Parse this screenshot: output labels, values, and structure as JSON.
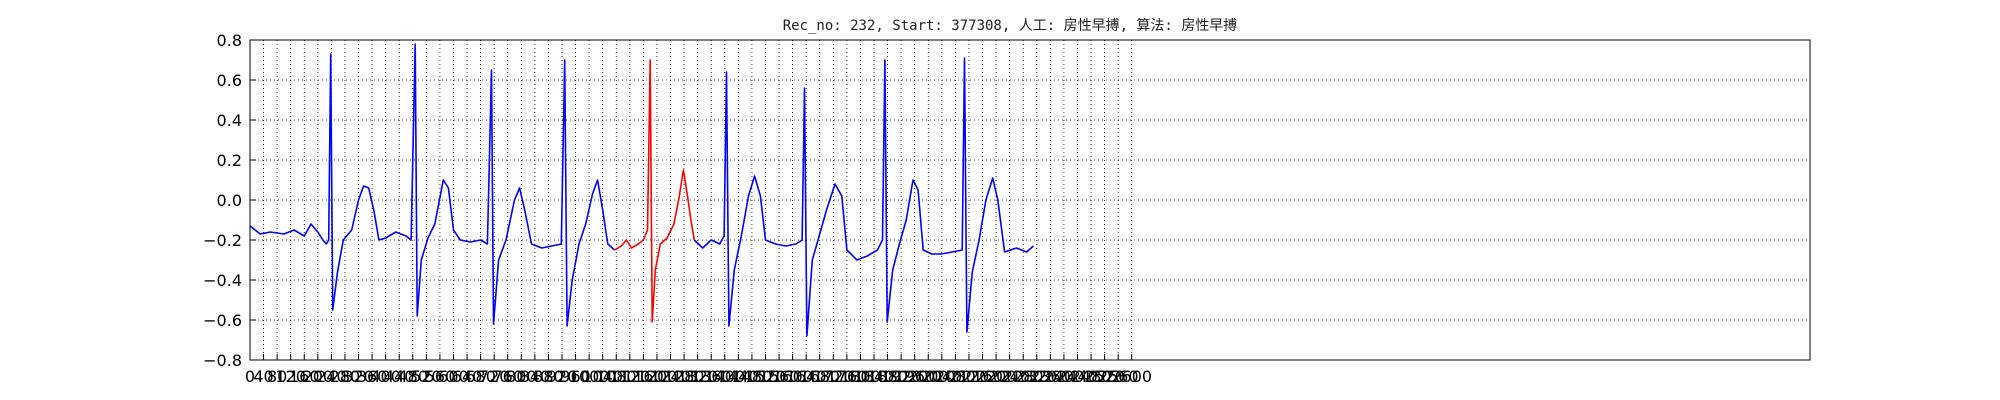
{
  "chart_data": {
    "type": "line",
    "title": "Rec_no: 232, Start: 377308, 人工: 房性早搏, 算法: 房性早搏",
    "xlabel": "",
    "ylabel": "",
    "xlim": [
      0,
      4600
    ],
    "ylim": [
      -0.8,
      0.8
    ],
    "grid": true,
    "y_ticks": [
      "0.8",
      "0.6",
      "0.4",
      "0.2",
      "0.0",
      "-0.2",
      "-0.4",
      "-0.6",
      "-0.8"
    ],
    "x_ticks": [
      "0",
      "40",
      "80",
      "120",
      "160",
      "200",
      "240",
      "280",
      "320",
      "360",
      "400",
      "440",
      "480",
      "520",
      "560",
      "600",
      "640",
      "680",
      "720",
      "760",
      "800",
      "840",
      "880",
      "920",
      "960",
      "1000",
      "1040",
      "1080",
      "1120",
      "1160",
      "1200",
      "1240",
      "1280",
      "1320",
      "1360",
      "1400",
      "1440",
      "1480",
      "1520",
      "1560",
      "1600",
      "1640",
      "1680",
      "1720",
      "1760",
      "1800",
      "1840",
      "1880",
      "1920",
      "1960",
      "2000",
      "2040",
      "2080",
      "2120",
      "2160",
      "2200",
      "2240",
      "2280",
      "2320",
      "2360",
      "2400",
      "2440",
      "2480",
      "2520",
      "2560",
      "2600"
    ],
    "series": [
      {
        "color": "#0000ff",
        "points": [
          [
            0,
            -0.13
          ],
          [
            30,
            -0.17
          ],
          [
            60,
            -0.16
          ],
          [
            100,
            -0.17
          ],
          [
            130,
            -0.15
          ],
          [
            160,
            -0.18
          ],
          [
            180,
            -0.12
          ],
          [
            200,
            -0.16
          ],
          [
            215,
            -0.2
          ],
          [
            225,
            -0.22
          ],
          [
            232,
            -0.2
          ],
          [
            238,
            0.73
          ],
          [
            244,
            -0.55
          ],
          [
            258,
            -0.36
          ],
          [
            275,
            -0.2
          ],
          [
            300,
            -0.15
          ],
          [
            320,
            0.0
          ],
          [
            335,
            0.07
          ],
          [
            350,
            0.06
          ],
          [
            365,
            -0.05
          ],
          [
            380,
            -0.2
          ],
          [
            400,
            -0.19
          ],
          [
            430,
            -0.16
          ],
          [
            460,
            -0.18
          ],
          [
            475,
            -0.2
          ],
          [
            487,
            0.78
          ],
          [
            493,
            -0.58
          ],
          [
            505,
            -0.3
          ],
          [
            525,
            -0.19
          ],
          [
            545,
            -0.12
          ],
          [
            570,
            0.1
          ],
          [
            585,
            0.06
          ],
          [
            600,
            -0.15
          ],
          [
            620,
            -0.2
          ],
          [
            650,
            -0.21
          ],
          [
            680,
            -0.2
          ],
          [
            700,
            -0.22
          ],
          [
            712,
            0.65
          ],
          [
            718,
            -0.62
          ],
          [
            733,
            -0.3
          ],
          [
            755,
            -0.2
          ],
          [
            780,
            0.0
          ],
          [
            795,
            0.06
          ],
          [
            810,
            -0.05
          ],
          [
            830,
            -0.22
          ],
          [
            860,
            -0.24
          ],
          [
            890,
            -0.23
          ],
          [
            918,
            -0.22
          ],
          [
            928,
            0.7
          ],
          [
            935,
            -0.63
          ],
          [
            950,
            -0.4
          ],
          [
            970,
            -0.22
          ],
          [
            990,
            -0.12
          ],
          [
            1010,
            0.03
          ],
          [
            1025,
            0.1
          ],
          [
            1040,
            -0.05
          ],
          [
            1055,
            -0.22
          ],
          [
            1075,
            -0.25
          ]
        ]
      },
      {
        "color": "#ff0000",
        "points": [
          [
            1075,
            -0.25
          ],
          [
            1095,
            -0.23
          ],
          [
            1110,
            -0.2
          ],
          [
            1125,
            -0.24
          ],
          [
            1145,
            -0.22
          ],
          [
            1160,
            -0.2
          ],
          [
            1172,
            -0.15
          ],
          [
            1180,
            0.7
          ],
          [
            1186,
            -0.61
          ],
          [
            1195,
            -0.35
          ],
          [
            1210,
            -0.22
          ],
          [
            1230,
            -0.19
          ],
          [
            1250,
            -0.12
          ],
          [
            1265,
            0.01
          ],
          [
            1278,
            0.15
          ],
          [
            1290,
            0.02
          ],
          [
            1300,
            -0.1
          ],
          [
            1310,
            -0.2
          ]
        ]
      },
      {
        "color": "#0000ff",
        "points": [
          [
            1310,
            -0.2
          ],
          [
            1335,
            -0.24
          ],
          [
            1360,
            -0.2
          ],
          [
            1385,
            -0.22
          ],
          [
            1398,
            -0.18
          ],
          [
            1405,
            0.64
          ],
          [
            1412,
            -0.63
          ],
          [
            1428,
            -0.35
          ],
          [
            1450,
            -0.17
          ],
          [
            1470,
            0.02
          ],
          [
            1488,
            0.12
          ],
          [
            1505,
            0.02
          ],
          [
            1520,
            -0.2
          ],
          [
            1550,
            -0.22
          ],
          [
            1580,
            -0.23
          ],
          [
            1610,
            -0.22
          ],
          [
            1628,
            -0.2
          ],
          [
            1635,
            0.56
          ],
          [
            1642,
            -0.68
          ],
          [
            1658,
            -0.3
          ],
          [
            1680,
            -0.17
          ],
          [
            1700,
            -0.05
          ],
          [
            1725,
            0.08
          ],
          [
            1745,
            0.02
          ],
          [
            1760,
            -0.25
          ],
          [
            1790,
            -0.3
          ],
          [
            1820,
            -0.28
          ],
          [
            1850,
            -0.25
          ],
          [
            1865,
            -0.2
          ],
          [
            1872,
            0.7
          ],
          [
            1879,
            -0.61
          ],
          [
            1895,
            -0.35
          ],
          [
            1915,
            -0.22
          ],
          [
            1935,
            -0.1
          ],
          [
            1955,
            0.1
          ],
          [
            1970,
            0.05
          ],
          [
            1985,
            -0.25
          ],
          [
            2010,
            -0.27
          ],
          [
            2040,
            -0.27
          ],
          [
            2070,
            -0.26
          ],
          [
            2100,
            -0.25
          ],
          [
            2107,
            0.71
          ],
          [
            2114,
            -0.66
          ],
          [
            2130,
            -0.36
          ],
          [
            2150,
            -0.2
          ],
          [
            2170,
            0.0
          ],
          [
            2190,
            0.11
          ],
          [
            2205,
            0.0
          ],
          [
            2225,
            -0.26
          ],
          [
            2260,
            -0.24
          ],
          [
            2290,
            -0.26
          ],
          [
            2310,
            -0.23
          ]
        ]
      }
    ]
  }
}
